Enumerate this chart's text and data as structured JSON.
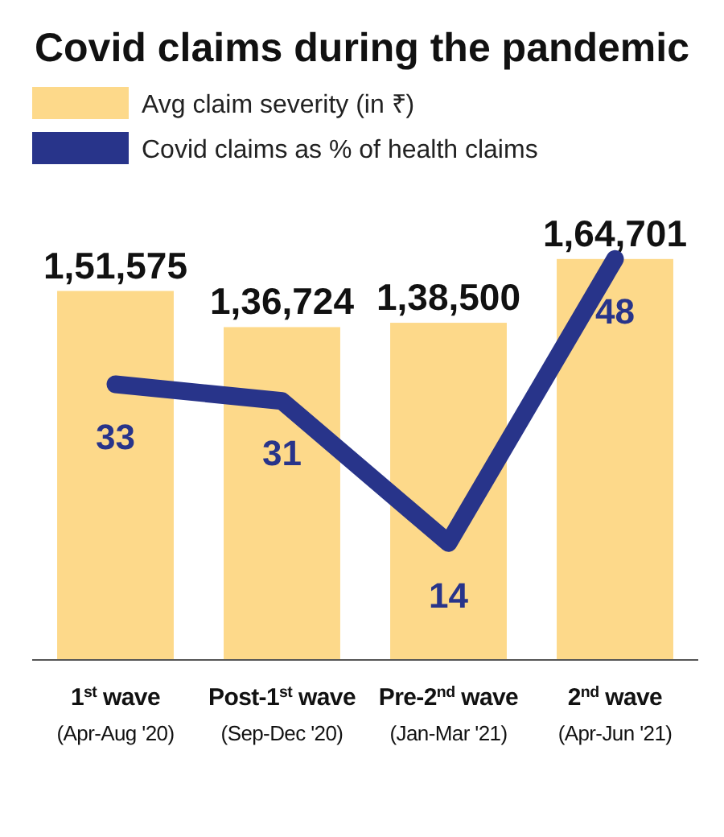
{
  "chart_data": {
    "type": "bar",
    "title": "Covid claims during the pandemic",
    "categories": [
      "1$^{st}$ wave\n(Apr-Aug '20)",
      "Post-1$^{st}$ wave\n(Sep-Dec '20)",
      "Pre-2$^{nd}$ wave\n(Jan-Mar '21)",
      "2$^{nd}$ wave\n(Apr-Jun '21)"
    ],
    "series": [
      {
        "name": "Avg claim severity (in ₹)",
        "color": "#fdd98a",
        "values": [
          151575,
          136724,
          138500,
          164701
        ],
        "value_labels": [
          "1,51,575",
          "1,36,724",
          "1,38,500",
          "1,64,701"
        ]
      },
      {
        "name": "Covid claims as % of health claims",
        "type": "line",
        "axis": "y2",
        "color": "#28348a",
        "values": [
          33,
          31,
          14,
          48
        ],
        "value_labels": [
          "33",
          "31",
          "14",
          "48"
        ]
      }
    ],
    "tick_labels": "x",
    "legend": "top left"
  }
}
